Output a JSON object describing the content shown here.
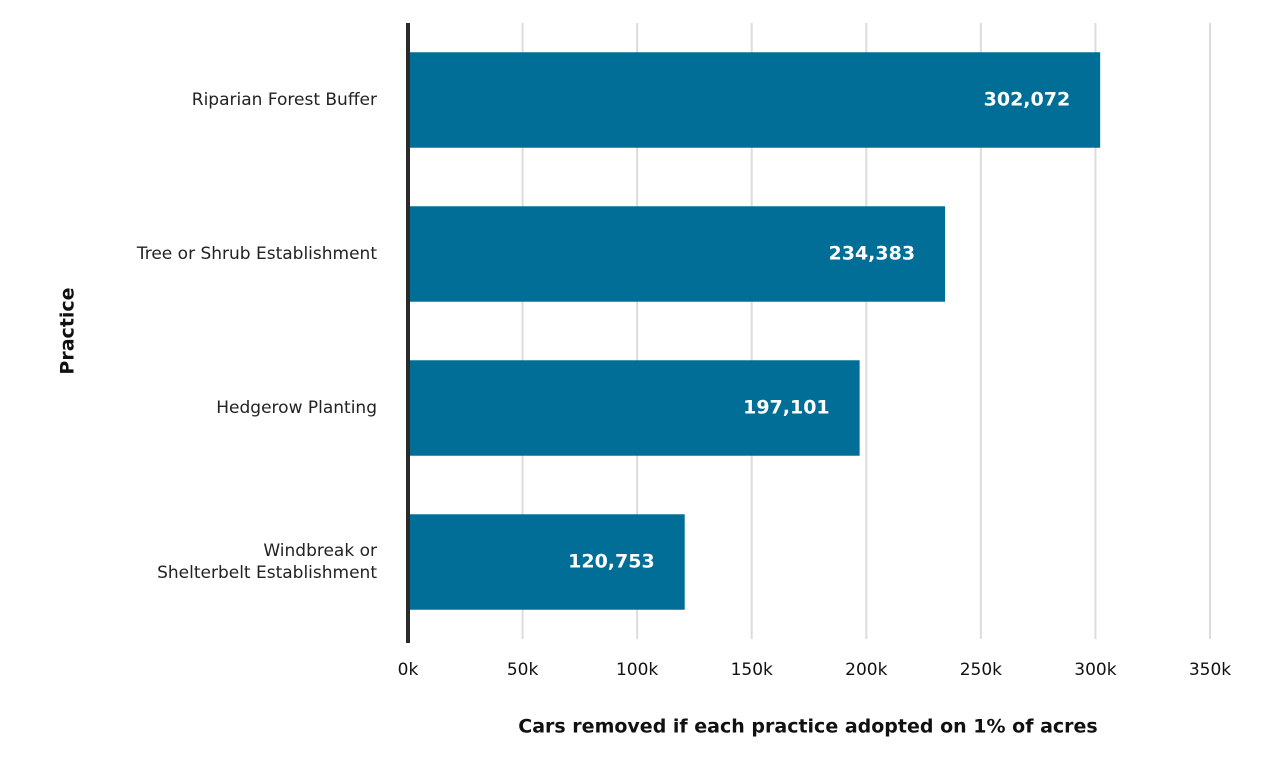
{
  "chart_data": {
    "type": "barh",
    "x_label": "Cars removed if each practice adopted on 1% of acres",
    "y_label": "Practice",
    "categories": [
      "Riparian Forest Buffer",
      "Tree or Shrub Establishment",
      "Hedgerow Planting",
      "Windbreak or\nShelterbelt Establishment"
    ],
    "values": [
      302072,
      234383,
      197101,
      120753
    ],
    "value_labels": [
      "302,072",
      "234,383",
      "197,101",
      "120,753"
    ],
    "color": "#006e96",
    "xlim": [
      0,
      350000
    ],
    "xticks": [
      {
        "value": 0,
        "label": "0k"
      },
      {
        "value": 50000,
        "label": "50k"
      },
      {
        "value": 100000,
        "label": "100k"
      },
      {
        "value": 150000,
        "label": "150k"
      },
      {
        "value": 200000,
        "label": "200k"
      },
      {
        "value": 250000,
        "label": "250k"
      },
      {
        "value": 300000,
        "label": "300k"
      },
      {
        "value": 350000,
        "label": "350k"
      }
    ],
    "grid": true
  }
}
